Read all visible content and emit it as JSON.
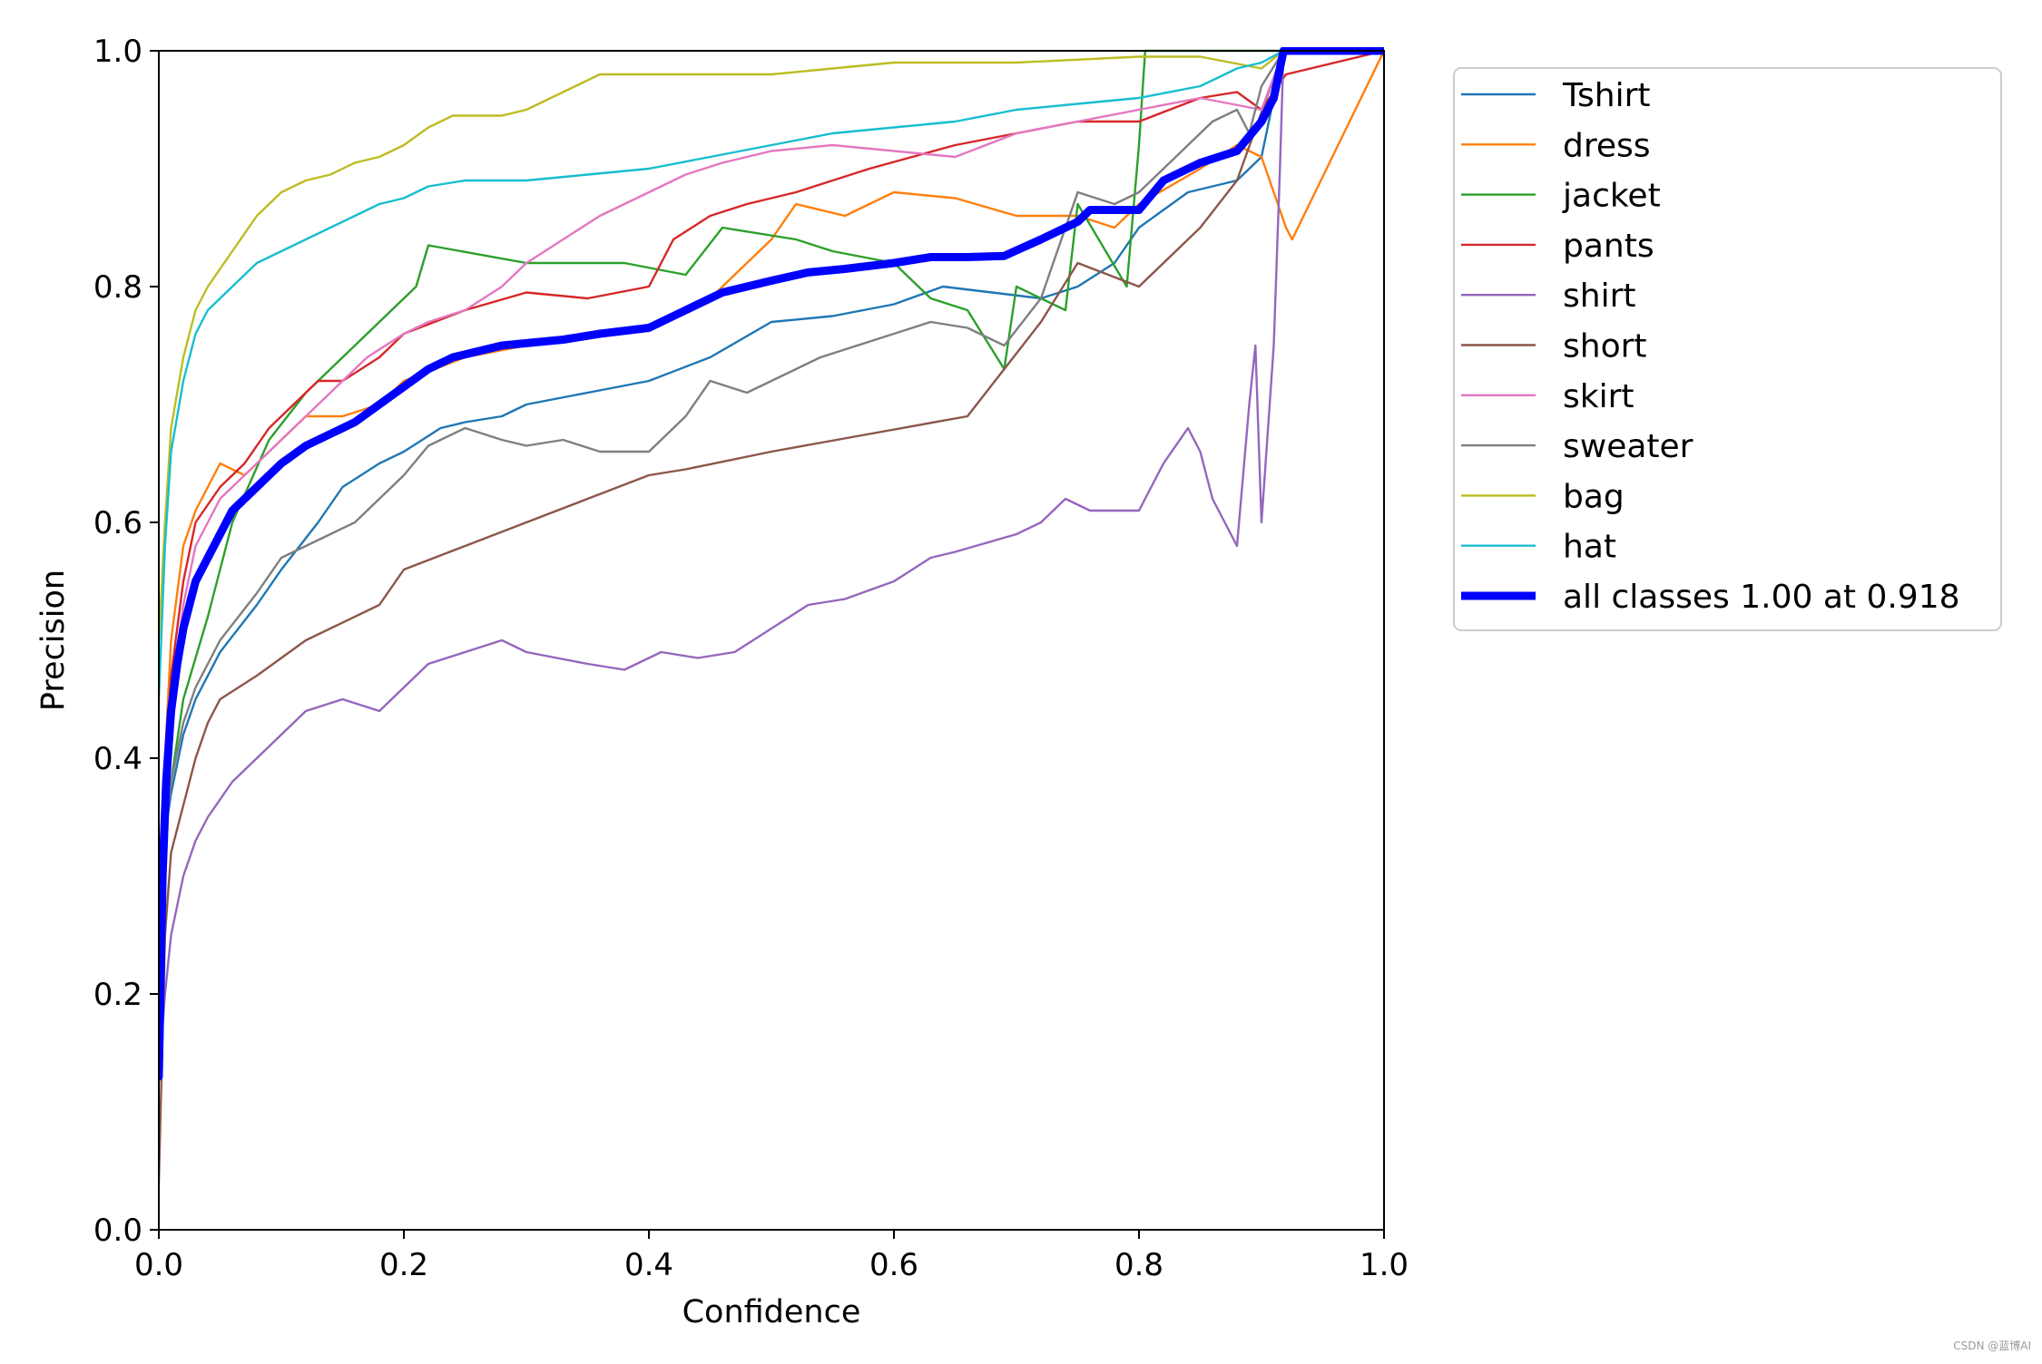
{
  "chart_data": {
    "type": "line",
    "title": "",
    "xlabel": "Confidence",
    "ylabel": "Precision",
    "xlim": [
      0,
      1
    ],
    "ylim": [
      0,
      1
    ],
    "xticks": [
      0.0,
      0.2,
      0.4,
      0.6,
      0.8,
      1.0
    ],
    "yticks": [
      0.0,
      0.2,
      0.4,
      0.6,
      0.8,
      1.0
    ],
    "xtick_labels": [
      "0.0",
      "0.2",
      "0.4",
      "0.6",
      "0.8",
      "1.0"
    ],
    "ytick_labels": [
      "0.0",
      "0.2",
      "0.4",
      "0.6",
      "0.8",
      "1.0"
    ],
    "grid": false,
    "legend_position": "outside-right-top",
    "series": [
      {
        "name": "Tshirt",
        "color": "#1f77b4",
        "x": [
          0.0,
          0.01,
          0.02,
          0.03,
          0.05,
          0.08,
          0.1,
          0.13,
          0.15,
          0.18,
          0.2,
          0.23,
          0.25,
          0.28,
          0.3,
          0.35,
          0.4,
          0.45,
          0.5,
          0.55,
          0.6,
          0.64,
          0.68,
          0.72,
          0.75,
          0.78,
          0.8,
          0.84,
          0.88,
          0.9,
          0.918,
          1.0
        ],
        "y": [
          0.3,
          0.37,
          0.42,
          0.45,
          0.49,
          0.53,
          0.56,
          0.6,
          0.63,
          0.65,
          0.66,
          0.68,
          0.685,
          0.69,
          0.7,
          0.71,
          0.72,
          0.74,
          0.77,
          0.775,
          0.785,
          0.8,
          0.795,
          0.79,
          0.8,
          0.82,
          0.85,
          0.88,
          0.89,
          0.91,
          1.0,
          1.0
        ]
      },
      {
        "name": "dress",
        "color": "#ff7f0e",
        "x": [
          0.0,
          0.01,
          0.02,
          0.03,
          0.05,
          0.07,
          0.1,
          0.12,
          0.15,
          0.18,
          0.2,
          0.25,
          0.3,
          0.35,
          0.4,
          0.45,
          0.5,
          0.52,
          0.56,
          0.6,
          0.65,
          0.7,
          0.75,
          0.78,
          0.8,
          0.85,
          0.88,
          0.9,
          0.92,
          0.925,
          1.0
        ],
        "y": [
          0.3,
          0.5,
          0.58,
          0.61,
          0.65,
          0.64,
          0.67,
          0.69,
          0.69,
          0.7,
          0.72,
          0.74,
          0.75,
          0.76,
          0.765,
          0.79,
          0.84,
          0.87,
          0.86,
          0.88,
          0.875,
          0.86,
          0.86,
          0.85,
          0.87,
          0.9,
          0.92,
          0.91,
          0.85,
          0.84,
          1.0
        ]
      },
      {
        "name": "jacket",
        "color": "#2ca02c",
        "x": [
          0.0,
          0.01,
          0.02,
          0.04,
          0.06,
          0.09,
          0.12,
          0.15,
          0.18,
          0.21,
          0.22,
          0.3,
          0.38,
          0.43,
          0.46,
          0.52,
          0.55,
          0.6,
          0.63,
          0.66,
          0.69,
          0.7,
          0.74,
          0.75,
          0.79,
          0.8,
          0.805,
          1.0
        ],
        "y": [
          0.3,
          0.38,
          0.45,
          0.52,
          0.6,
          0.67,
          0.71,
          0.74,
          0.77,
          0.8,
          0.835,
          0.82,
          0.82,
          0.81,
          0.85,
          0.84,
          0.83,
          0.82,
          0.79,
          0.78,
          0.73,
          0.8,
          0.78,
          0.87,
          0.8,
          0.92,
          1.0,
          1.0
        ]
      },
      {
        "name": "pants",
        "color": "#d62728",
        "x": [
          0.0,
          0.01,
          0.02,
          0.03,
          0.05,
          0.07,
          0.09,
          0.11,
          0.13,
          0.15,
          0.18,
          0.2,
          0.25,
          0.3,
          0.35,
          0.4,
          0.42,
          0.45,
          0.48,
          0.52,
          0.58,
          0.65,
          0.7,
          0.75,
          0.8,
          0.85,
          0.88,
          0.9,
          0.92,
          1.0
        ],
        "y": [
          0.3,
          0.47,
          0.55,
          0.6,
          0.63,
          0.65,
          0.68,
          0.7,
          0.72,
          0.72,
          0.74,
          0.76,
          0.78,
          0.795,
          0.79,
          0.8,
          0.84,
          0.86,
          0.87,
          0.88,
          0.9,
          0.92,
          0.93,
          0.94,
          0.94,
          0.96,
          0.965,
          0.95,
          0.98,
          1.0
        ]
      },
      {
        "name": "shirt",
        "color": "#9467bd",
        "x": [
          0.0,
          0.005,
          0.01,
          0.02,
          0.03,
          0.04,
          0.06,
          0.08,
          0.1,
          0.12,
          0.15,
          0.18,
          0.2,
          0.22,
          0.25,
          0.28,
          0.3,
          0.35,
          0.38,
          0.41,
          0.44,
          0.47,
          0.5,
          0.53,
          0.56,
          0.6,
          0.63,
          0.65,
          0.7,
          0.72,
          0.74,
          0.76,
          0.8,
          0.81,
          0.82,
          0.84,
          0.85,
          0.86,
          0.87,
          0.88,
          0.89,
          0.895,
          0.9,
          0.91,
          0.915,
          0.918,
          1.0
        ],
        "y": [
          0.13,
          0.2,
          0.25,
          0.3,
          0.33,
          0.35,
          0.38,
          0.4,
          0.42,
          0.44,
          0.45,
          0.44,
          0.46,
          0.48,
          0.49,
          0.5,
          0.49,
          0.48,
          0.475,
          0.49,
          0.485,
          0.49,
          0.51,
          0.53,
          0.535,
          0.55,
          0.57,
          0.575,
          0.59,
          0.6,
          0.62,
          0.61,
          0.61,
          0.63,
          0.65,
          0.68,
          0.66,
          0.62,
          0.6,
          0.58,
          0.7,
          0.75,
          0.6,
          0.75,
          0.9,
          1.0,
          1.0
        ]
      },
      {
        "name": "short",
        "color": "#8c564b",
        "x": [
          0.0,
          0.005,
          0.01,
          0.02,
          0.03,
          0.04,
          0.05,
          0.08,
          0.12,
          0.18,
          0.2,
          0.25,
          0.3,
          0.35,
          0.4,
          0.43,
          0.5,
          0.58,
          0.66,
          0.69,
          0.72,
          0.75,
          0.8,
          0.85,
          0.88,
          0.918,
          1.0
        ],
        "y": [
          0.04,
          0.25,
          0.32,
          0.36,
          0.4,
          0.43,
          0.45,
          0.47,
          0.5,
          0.53,
          0.56,
          0.58,
          0.6,
          0.62,
          0.64,
          0.645,
          0.66,
          0.675,
          0.69,
          0.73,
          0.77,
          0.82,
          0.8,
          0.85,
          0.89,
          1.0,
          1.0
        ]
      },
      {
        "name": "skirt",
        "color": "#e377c2",
        "x": [
          0.0,
          0.01,
          0.02,
          0.03,
          0.05,
          0.07,
          0.09,
          0.11,
          0.13,
          0.15,
          0.17,
          0.2,
          0.22,
          0.25,
          0.28,
          0.3,
          0.33,
          0.36,
          0.4,
          0.43,
          0.46,
          0.5,
          0.55,
          0.6,
          0.65,
          0.7,
          0.75,
          0.8,
          0.85,
          0.9,
          0.918,
          1.0
        ],
        "y": [
          0.3,
          0.45,
          0.53,
          0.58,
          0.62,
          0.64,
          0.66,
          0.68,
          0.7,
          0.72,
          0.74,
          0.76,
          0.77,
          0.78,
          0.8,
          0.82,
          0.84,
          0.86,
          0.88,
          0.895,
          0.905,
          0.915,
          0.92,
          0.915,
          0.91,
          0.93,
          0.94,
          0.95,
          0.96,
          0.95,
          1.0,
          1.0
        ]
      },
      {
        "name": "sweater",
        "color": "#7f7f7f",
        "x": [
          0.0,
          0.01,
          0.02,
          0.03,
          0.05,
          0.08,
          0.1,
          0.12,
          0.14,
          0.16,
          0.18,
          0.2,
          0.22,
          0.25,
          0.28,
          0.3,
          0.33,
          0.36,
          0.4,
          0.43,
          0.45,
          0.48,
          0.5,
          0.54,
          0.57,
          0.6,
          0.63,
          0.66,
          0.69,
          0.72,
          0.75,
          0.78,
          0.8,
          0.82,
          0.84,
          0.86,
          0.88,
          0.89,
          0.9,
          0.918,
          1.0
        ],
        "y": [
          0.3,
          0.38,
          0.43,
          0.46,
          0.5,
          0.54,
          0.57,
          0.58,
          0.59,
          0.6,
          0.62,
          0.64,
          0.665,
          0.68,
          0.67,
          0.665,
          0.67,
          0.66,
          0.66,
          0.69,
          0.72,
          0.71,
          0.72,
          0.74,
          0.75,
          0.76,
          0.77,
          0.765,
          0.75,
          0.79,
          0.88,
          0.87,
          0.88,
          0.9,
          0.92,
          0.94,
          0.95,
          0.93,
          0.97,
          1.0,
          1.0
        ]
      },
      {
        "name": "bag",
        "color": "#bcbd22",
        "x": [
          0.0,
          0.005,
          0.01,
          0.02,
          0.03,
          0.04,
          0.06,
          0.08,
          0.1,
          0.12,
          0.14,
          0.16,
          0.18,
          0.2,
          0.22,
          0.24,
          0.26,
          0.28,
          0.3,
          0.32,
          0.34,
          0.36,
          0.4,
          0.45,
          0.5,
          0.55,
          0.6,
          0.7,
          0.8,
          0.85,
          0.9,
          0.918,
          1.0
        ],
        "y": [
          0.5,
          0.6,
          0.68,
          0.74,
          0.78,
          0.8,
          0.83,
          0.86,
          0.88,
          0.89,
          0.895,
          0.905,
          0.91,
          0.92,
          0.935,
          0.945,
          0.945,
          0.945,
          0.95,
          0.96,
          0.97,
          0.98,
          0.98,
          0.98,
          0.98,
          0.985,
          0.99,
          0.99,
          0.995,
          0.995,
          0.985,
          1.0,
          1.0
        ]
      },
      {
        "name": "hat",
        "color": "#17becf",
        "x": [
          0.0,
          0.005,
          0.01,
          0.02,
          0.03,
          0.04,
          0.06,
          0.08,
          0.1,
          0.12,
          0.14,
          0.16,
          0.18,
          0.2,
          0.22,
          0.25,
          0.3,
          0.35,
          0.4,
          0.45,
          0.5,
          0.55,
          0.6,
          0.65,
          0.7,
          0.75,
          0.8,
          0.85,
          0.88,
          0.9,
          0.918,
          1.0
        ],
        "y": [
          0.45,
          0.58,
          0.66,
          0.72,
          0.76,
          0.78,
          0.8,
          0.82,
          0.83,
          0.84,
          0.85,
          0.86,
          0.87,
          0.875,
          0.885,
          0.89,
          0.89,
          0.895,
          0.9,
          0.91,
          0.92,
          0.93,
          0.935,
          0.94,
          0.95,
          0.955,
          0.96,
          0.97,
          0.985,
          0.99,
          1.0,
          1.0
        ]
      },
      {
        "name": "all classes 1.00 at 0.918",
        "color": "#0000ff",
        "bold": true,
        "x": [
          0.0,
          0.003,
          0.006,
          0.01,
          0.015,
          0.02,
          0.03,
          0.04,
          0.05,
          0.06,
          0.08,
          0.1,
          0.12,
          0.14,
          0.16,
          0.18,
          0.2,
          0.22,
          0.24,
          0.26,
          0.28,
          0.3,
          0.33,
          0.36,
          0.4,
          0.43,
          0.46,
          0.5,
          0.53,
          0.56,
          0.6,
          0.63,
          0.66,
          0.69,
          0.72,
          0.75,
          0.76,
          0.8,
          0.82,
          0.85,
          0.88,
          0.9,
          0.91,
          0.918,
          1.0
        ],
        "y": [
          0.13,
          0.3,
          0.38,
          0.44,
          0.48,
          0.51,
          0.55,
          0.57,
          0.59,
          0.61,
          0.63,
          0.65,
          0.665,
          0.675,
          0.685,
          0.7,
          0.715,
          0.73,
          0.74,
          0.745,
          0.75,
          0.752,
          0.755,
          0.76,
          0.765,
          0.78,
          0.795,
          0.805,
          0.812,
          0.815,
          0.82,
          0.825,
          0.825,
          0.826,
          0.84,
          0.855,
          0.865,
          0.865,
          0.89,
          0.905,
          0.915,
          0.94,
          0.96,
          1.0,
          1.0
        ]
      }
    ]
  },
  "watermark": "CSDN @蓝博AI"
}
